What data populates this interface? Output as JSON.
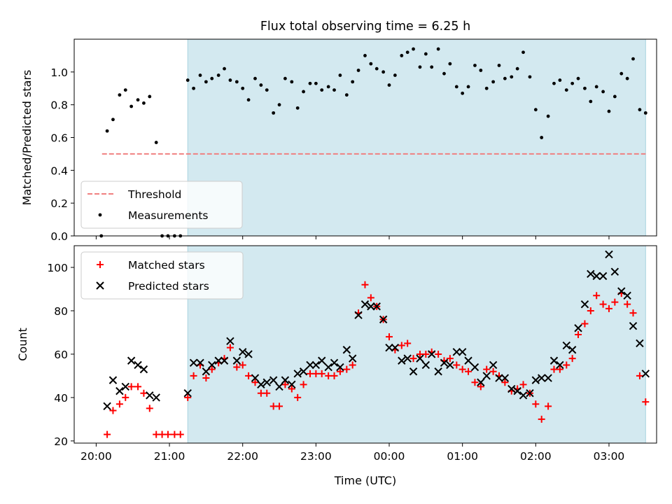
{
  "title": "Flux total observing time = 6.25 h",
  "colors": {
    "shade": "#d3e9f0",
    "shade_edge": "#a9d4e0",
    "threshold": "#f08080",
    "measurement": "#000000",
    "matched": "#ff0000",
    "predicted": "#000000"
  },
  "chart_data": [
    {
      "type": "scatter",
      "ylabel": "Matched/Predicted stars",
      "xlim": [
        -0.3,
        7.65
      ],
      "ylim": [
        0,
        1.2
      ],
      "yticks": [
        0.0,
        0.2,
        0.4,
        0.6,
        0.8,
        1.0
      ],
      "ytick_labels": [
        "0.0",
        "0.2",
        "0.4",
        "0.6",
        "0.8",
        "1.0"
      ],
      "xticks": [
        0,
        1,
        2,
        3,
        4,
        5,
        6,
        7
      ],
      "shaded_span": [
        1.25,
        7.5
      ],
      "threshold": {
        "name": "Threshold",
        "y": 0.5,
        "x_range": [
          0.08,
          7.5
        ],
        "style": "dashed"
      },
      "legend": {
        "position": "lower-left",
        "entries": [
          "Threshold",
          "Measurements"
        ]
      },
      "series": [
        {
          "name": "Measurements",
          "marker": "dot",
          "points": [
            [
              0.07,
              0.0
            ],
            [
              0.15,
              0.64
            ],
            [
              0.23,
              0.71
            ],
            [
              0.32,
              0.86
            ],
            [
              0.4,
              0.89
            ],
            [
              0.48,
              0.79
            ],
            [
              0.57,
              0.83
            ],
            [
              0.65,
              0.81
            ],
            [
              0.73,
              0.85
            ],
            [
              0.82,
              0.57
            ],
            [
              0.9,
              0.0
            ],
            [
              0.98,
              0.0
            ],
            [
              1.07,
              0.0
            ],
            [
              1.15,
              0.0
            ],
            [
              1.25,
              0.95
            ],
            [
              1.33,
              0.9
            ],
            [
              1.42,
              0.98
            ],
            [
              1.5,
              0.94
            ],
            [
              1.58,
              0.96
            ],
            [
              1.67,
              0.98
            ],
            [
              1.75,
              1.02
            ],
            [
              1.83,
              0.95
            ],
            [
              1.92,
              0.94
            ],
            [
              2.0,
              0.9
            ],
            [
              2.08,
              0.83
            ],
            [
              2.17,
              0.96
            ],
            [
              2.25,
              0.92
            ],
            [
              2.33,
              0.89
            ],
            [
              2.42,
              0.75
            ],
            [
              2.5,
              0.8
            ],
            [
              2.58,
              0.96
            ],
            [
              2.67,
              0.94
            ],
            [
              2.75,
              0.78
            ],
            [
              2.83,
              0.88
            ],
            [
              2.92,
              0.93
            ],
            [
              3.0,
              0.93
            ],
            [
              3.08,
              0.89
            ],
            [
              3.17,
              0.91
            ],
            [
              3.25,
              0.89
            ],
            [
              3.33,
              0.98
            ],
            [
              3.42,
              0.86
            ],
            [
              3.5,
              0.94
            ],
            [
              3.58,
              1.01
            ],
            [
              3.67,
              1.1
            ],
            [
              3.75,
              1.05
            ],
            [
              3.83,
              1.02
            ],
            [
              3.92,
              1.0
            ],
            [
              4.0,
              0.92
            ],
            [
              4.08,
              0.98
            ],
            [
              4.17,
              1.1
            ],
            [
              4.25,
              1.12
            ],
            [
              4.33,
              1.14
            ],
            [
              4.42,
              1.03
            ],
            [
              4.5,
              1.11
            ],
            [
              4.58,
              1.03
            ],
            [
              4.67,
              1.14
            ],
            [
              4.75,
              0.99
            ],
            [
              4.83,
              1.05
            ],
            [
              4.92,
              0.91
            ],
            [
              5.0,
              0.87
            ],
            [
              5.08,
              0.91
            ],
            [
              5.17,
              1.04
            ],
            [
              5.25,
              1.01
            ],
            [
              5.33,
              0.9
            ],
            [
              5.42,
              0.94
            ],
            [
              5.5,
              1.04
            ],
            [
              5.58,
              0.96
            ],
            [
              5.67,
              0.97
            ],
            [
              5.75,
              1.02
            ],
            [
              5.83,
              1.12
            ],
            [
              5.92,
              0.97
            ],
            [
              6.0,
              0.77
            ],
            [
              6.08,
              0.6
            ],
            [
              6.17,
              0.73
            ],
            [
              6.25,
              0.93
            ],
            [
              6.33,
              0.95
            ],
            [
              6.42,
              0.89
            ],
            [
              6.5,
              0.93
            ],
            [
              6.58,
              0.96
            ],
            [
              6.67,
              0.9
            ],
            [
              6.75,
              0.82
            ],
            [
              6.83,
              0.91
            ],
            [
              6.92,
              0.88
            ],
            [
              7.0,
              0.76
            ],
            [
              7.08,
              0.85
            ],
            [
              7.17,
              0.99
            ],
            [
              7.25,
              0.96
            ],
            [
              7.33,
              1.08
            ],
            [
              7.42,
              0.77
            ],
            [
              7.5,
              0.75
            ]
          ]
        }
      ]
    },
    {
      "type": "scatter",
      "xlabel": "Time (UTC)",
      "ylabel": "Count",
      "xlim": [
        -0.3,
        7.65
      ],
      "ylim": [
        19,
        110
      ],
      "yticks": [
        20,
        40,
        60,
        80,
        100
      ],
      "ytick_labels": [
        "20",
        "40",
        "60",
        "80",
        "100"
      ],
      "xticks": [
        0,
        1,
        2,
        3,
        4,
        5,
        6,
        7
      ],
      "xtick_labels": [
        "20:00",
        "21:00",
        "22:00",
        "23:00",
        "00:00",
        "01:00",
        "02:00",
        "03:00"
      ],
      "shaded_span": [
        1.25,
        7.5
      ],
      "legend": {
        "position": "upper-left",
        "entries": [
          "Matched stars",
          "Predicted stars"
        ]
      },
      "series": [
        {
          "name": "Matched stars",
          "marker": "plus",
          "points": [
            [
              0.15,
              23
            ],
            [
              0.23,
              34
            ],
            [
              0.32,
              37
            ],
            [
              0.4,
              40
            ],
            [
              0.48,
              45
            ],
            [
              0.57,
              45
            ],
            [
              0.65,
              42
            ],
            [
              0.73,
              35
            ],
            [
              0.82,
              23
            ],
            [
              0.9,
              23
            ],
            [
              0.98,
              23
            ],
            [
              1.07,
              23
            ],
            [
              1.15,
              23
            ],
            [
              1.25,
              40
            ],
            [
              1.33,
              50
            ],
            [
              1.42,
              55
            ],
            [
              1.5,
              49
            ],
            [
              1.58,
              53
            ],
            [
              1.67,
              56
            ],
            [
              1.75,
              58
            ],
            [
              1.83,
              63
            ],
            [
              1.92,
              54
            ],
            [
              2.0,
              55
            ],
            [
              2.08,
              50
            ],
            [
              2.17,
              47
            ],
            [
              2.25,
              42
            ],
            [
              2.33,
              42
            ],
            [
              2.42,
              36
            ],
            [
              2.5,
              36
            ],
            [
              2.58,
              46
            ],
            [
              2.67,
              44
            ],
            [
              2.75,
              40
            ],
            [
              2.83,
              46
            ],
            [
              2.92,
              51
            ],
            [
              3.0,
              51
            ],
            [
              3.08,
              51
            ],
            [
              3.17,
              50
            ],
            [
              3.25,
              50
            ],
            [
              3.33,
              52
            ],
            [
              3.42,
              53
            ],
            [
              3.5,
              55
            ],
            [
              3.58,
              79
            ],
            [
              3.67,
              92
            ],
            [
              3.75,
              86
            ],
            [
              3.83,
              82
            ],
            [
              3.92,
              76
            ],
            [
              4.0,
              68
            ],
            [
              4.08,
              62
            ],
            [
              4.17,
              64
            ],
            [
              4.25,
              65
            ],
            [
              4.33,
              58
            ],
            [
              4.42,
              60
            ],
            [
              4.5,
              60
            ],
            [
              4.58,
              61
            ],
            [
              4.67,
              60
            ],
            [
              4.75,
              57
            ],
            [
              4.83,
              58
            ],
            [
              4.92,
              55
            ],
            [
              5.0,
              53
            ],
            [
              5.08,
              52
            ],
            [
              5.17,
              47
            ],
            [
              5.25,
              45
            ],
            [
              5.33,
              53
            ],
            [
              5.42,
              52
            ],
            [
              5.5,
              50
            ],
            [
              5.58,
              47
            ],
            [
              5.67,
              43
            ],
            [
              5.75,
              44
            ],
            [
              5.83,
              46
            ],
            [
              5.92,
              42
            ],
            [
              6.0,
              37
            ],
            [
              6.08,
              30
            ],
            [
              6.17,
              36
            ],
            [
              6.25,
              53
            ],
            [
              6.33,
              53
            ],
            [
              6.42,
              55
            ],
            [
              6.5,
              58
            ],
            [
              6.58,
              69
            ],
            [
              6.67,
              74
            ],
            [
              6.75,
              80
            ],
            [
              6.83,
              87
            ],
            [
              6.92,
              83
            ],
            [
              7.0,
              81
            ],
            [
              7.08,
              84
            ],
            [
              7.17,
              88
            ],
            [
              7.25,
              83
            ],
            [
              7.33,
              79
            ],
            [
              7.42,
              50
            ],
            [
              7.5,
              38
            ]
          ]
        },
        {
          "name": "Predicted stars",
          "marker": "x",
          "points": [
            [
              0.15,
              36
            ],
            [
              0.23,
              48
            ],
            [
              0.32,
              43
            ],
            [
              0.4,
              45
            ],
            [
              0.48,
              57
            ],
            [
              0.57,
              55
            ],
            [
              0.65,
              53
            ],
            [
              0.73,
              41
            ],
            [
              0.82,
              40
            ],
            [
              1.25,
              42
            ],
            [
              1.33,
              56
            ],
            [
              1.42,
              56
            ],
            [
              1.5,
              52
            ],
            [
              1.58,
              55
            ],
            [
              1.67,
              57
            ],
            [
              1.75,
              57
            ],
            [
              1.83,
              66
            ],
            [
              1.92,
              57
            ],
            [
              2.0,
              61
            ],
            [
              2.08,
              60
            ],
            [
              2.17,
              49
            ],
            [
              2.25,
              46
            ],
            [
              2.33,
              47
            ],
            [
              2.42,
              48
            ],
            [
              2.5,
              45
            ],
            [
              2.58,
              48
            ],
            [
              2.67,
              46
            ],
            [
              2.75,
              51
            ],
            [
              2.83,
              52
            ],
            [
              2.92,
              55
            ],
            [
              3.0,
              55
            ],
            [
              3.08,
              57
            ],
            [
              3.17,
              54
            ],
            [
              3.25,
              56
            ],
            [
              3.33,
              54
            ],
            [
              3.42,
              62
            ],
            [
              3.5,
              58
            ],
            [
              3.58,
              78
            ],
            [
              3.67,
              83
            ],
            [
              3.75,
              82
            ],
            [
              3.83,
              82
            ],
            [
              3.92,
              76
            ],
            [
              4.0,
              63
            ],
            [
              4.08,
              63
            ],
            [
              4.17,
              57
            ],
            [
              4.25,
              58
            ],
            [
              4.33,
              52
            ],
            [
              4.42,
              58
            ],
            [
              4.5,
              55
            ],
            [
              4.58,
              60
            ],
            [
              4.67,
              52
            ],
            [
              4.75,
              56
            ],
            [
              4.83,
              55
            ],
            [
              4.92,
              61
            ],
            [
              5.0,
              61
            ],
            [
              5.08,
              57
            ],
            [
              5.17,
              54
            ],
            [
              5.25,
              47
            ],
            [
              5.33,
              50
            ],
            [
              5.42,
              55
            ],
            [
              5.5,
              49
            ],
            [
              5.58,
              49
            ],
            [
              5.67,
              44
            ],
            [
              5.75,
              43
            ],
            [
              5.83,
              41
            ],
            [
              5.92,
              42
            ],
            [
              6.0,
              48
            ],
            [
              6.08,
              49
            ],
            [
              6.17,
              49
            ],
            [
              6.25,
              57
            ],
            [
              6.33,
              55
            ],
            [
              6.42,
              64
            ],
            [
              6.5,
              62
            ],
            [
              6.58,
              72
            ],
            [
              6.67,
              83
            ],
            [
              6.75,
              97
            ],
            [
              6.83,
              96
            ],
            [
              6.92,
              96
            ],
            [
              7.0,
              106
            ],
            [
              7.08,
              98
            ],
            [
              7.17,
              89
            ],
            [
              7.25,
              87
            ],
            [
              7.33,
              73
            ],
            [
              7.42,
              65
            ],
            [
              7.5,
              51
            ]
          ]
        }
      ]
    }
  ]
}
